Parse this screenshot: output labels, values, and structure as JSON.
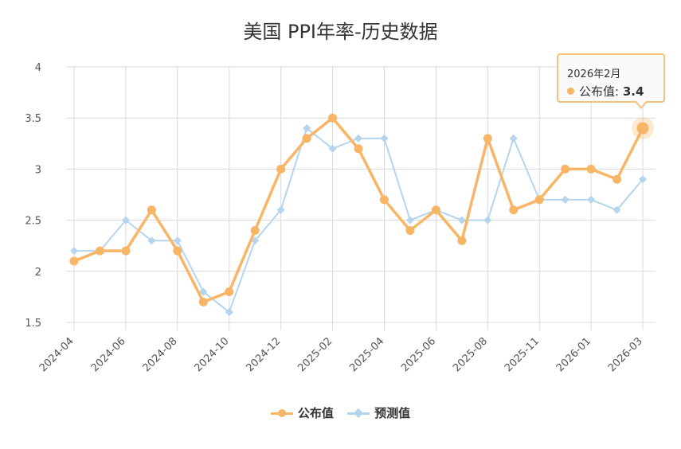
{
  "chart_data": {
    "type": "line",
    "title": "美国 PPI年率-历史数据",
    "x_labels": [
      "2024-04",
      "2024-06",
      "2024-08",
      "2024-10",
      "2024-12",
      "2025-02",
      "2025-04",
      "2025-06",
      "2025-08",
      "2025-11",
      "2026-01",
      "2026-03"
    ],
    "y_ticks": [
      "1.5",
      "2",
      "2.5",
      "3",
      "3.5",
      "4"
    ],
    "ylim": [
      1.5,
      4
    ],
    "grid": true,
    "legend_position": "bottom",
    "series": [
      {
        "name": "公布值",
        "color": "#f7b565",
        "marker": "circle",
        "values": [
          2.1,
          2.2,
          2.2,
          2.6,
          2.2,
          1.7,
          1.8,
          2.4,
          3.0,
          3.3,
          3.5,
          3.2,
          2.7,
          2.4,
          2.6,
          2.3,
          3.3,
          2.6,
          2.7,
          3.0,
          3.0,
          2.9,
          3.4
        ]
      },
      {
        "name": "预测值",
        "color": "#b5d4ee",
        "marker": "diamond",
        "values": [
          2.2,
          2.2,
          2.5,
          2.3,
          2.3,
          1.8,
          1.6,
          2.3,
          2.6,
          3.4,
          3.2,
          3.3,
          3.3,
          2.5,
          2.6,
          2.5,
          2.5,
          3.3,
          2.7,
          2.7,
          2.7,
          2.6,
          2.9
        ]
      }
    ],
    "tooltip": {
      "date": "2026年2月",
      "series_label": "公布值:",
      "value": "3.4",
      "point_index": 22
    }
  }
}
